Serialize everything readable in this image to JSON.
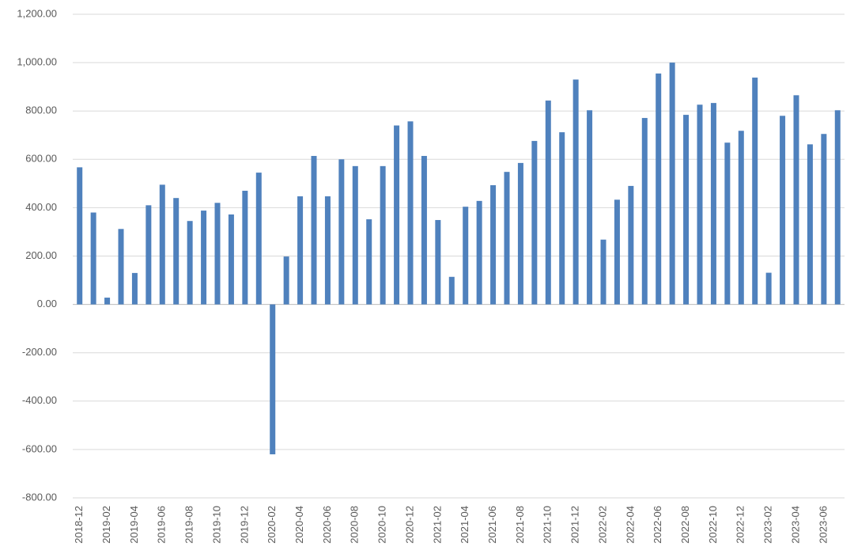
{
  "chart_data": {
    "type": "bar",
    "categories": [
      "2018-12",
      null,
      "2019-02",
      null,
      "2019-04",
      null,
      "2019-06",
      null,
      "2019-08",
      null,
      "2019-10",
      null,
      "2019-12",
      null,
      "2020-02",
      null,
      "2020-04",
      null,
      "2020-06",
      null,
      "2020-08",
      null,
      "2020-10",
      null,
      "2020-12",
      null,
      "2021-02",
      null,
      "2021-04",
      null,
      "2021-06",
      null,
      "2021-08",
      null,
      "2021-10",
      null,
      "2021-12",
      null,
      "2022-02",
      null,
      "2022-04",
      null,
      "2022-06",
      null,
      "2022-08",
      null,
      "2022-10",
      null,
      "2022-12",
      null,
      "2023-02",
      null,
      "2023-04",
      null,
      "2023-06",
      null
    ],
    "values": [
      567,
      380,
      28,
      312,
      130,
      410,
      495,
      440,
      345,
      388,
      420,
      372,
      470,
      545,
      -620,
      198,
      447,
      614,
      447,
      600,
      572,
      352,
      572,
      740,
      757,
      614,
      349,
      114,
      404,
      428,
      493,
      548,
      585,
      676,
      843,
      712,
      930,
      803,
      268,
      433,
      490,
      771,
      955,
      1000,
      784,
      826,
      833,
      669,
      718,
      938,
      131,
      780,
      865,
      662,
      705,
      803
    ],
    "color": "#4f81bd",
    "ylim": [
      -800,
      1200
    ],
    "yticks": [
      {
        "value": -800,
        "label": "-800.00"
      },
      {
        "value": -600,
        "label": "-600.00"
      },
      {
        "value": -400,
        "label": "-400.00"
      },
      {
        "value": -200,
        "label": "-200.00"
      },
      {
        "value": 0,
        "label": "0.00"
      },
      {
        "value": 200,
        "label": "200.00"
      },
      {
        "value": 400,
        "label": "400.00"
      },
      {
        "value": 600,
        "label": "600.00"
      },
      {
        "value": 800,
        "label": "800.00"
      },
      {
        "value": 1000,
        "label": "1,000.00"
      },
      {
        "value": 1200,
        "label": "1,200.00"
      }
    ],
    "grid": true
  }
}
